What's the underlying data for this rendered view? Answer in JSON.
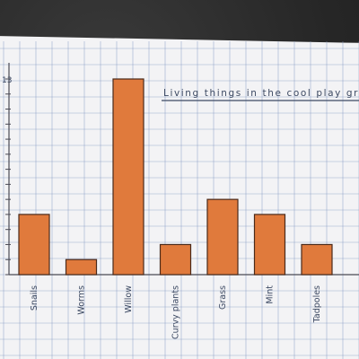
{
  "chart_data": {
    "type": "bar",
    "title": "Living things in the cool play ground",
    "xlabel": "",
    "ylabel": "",
    "categories": [
      "Snails",
      "Worms",
      "Willow",
      "Curvy plants",
      "Grass",
      "Mint",
      "Tadpoles"
    ],
    "values": [
      4,
      1,
      13,
      2,
      5,
      4,
      2
    ],
    "ylim": [
      0,
      13
    ],
    "yticks": [
      {
        "value": 13,
        "label": "13"
      }
    ],
    "grid": true,
    "legend": "none",
    "colors": {
      "bar": "#e07a3c",
      "bar_edge": "#4a2a1a",
      "grid": "#7f95c2",
      "paper": "#f3f3f5",
      "ink": "#3d4a63"
    }
  }
}
